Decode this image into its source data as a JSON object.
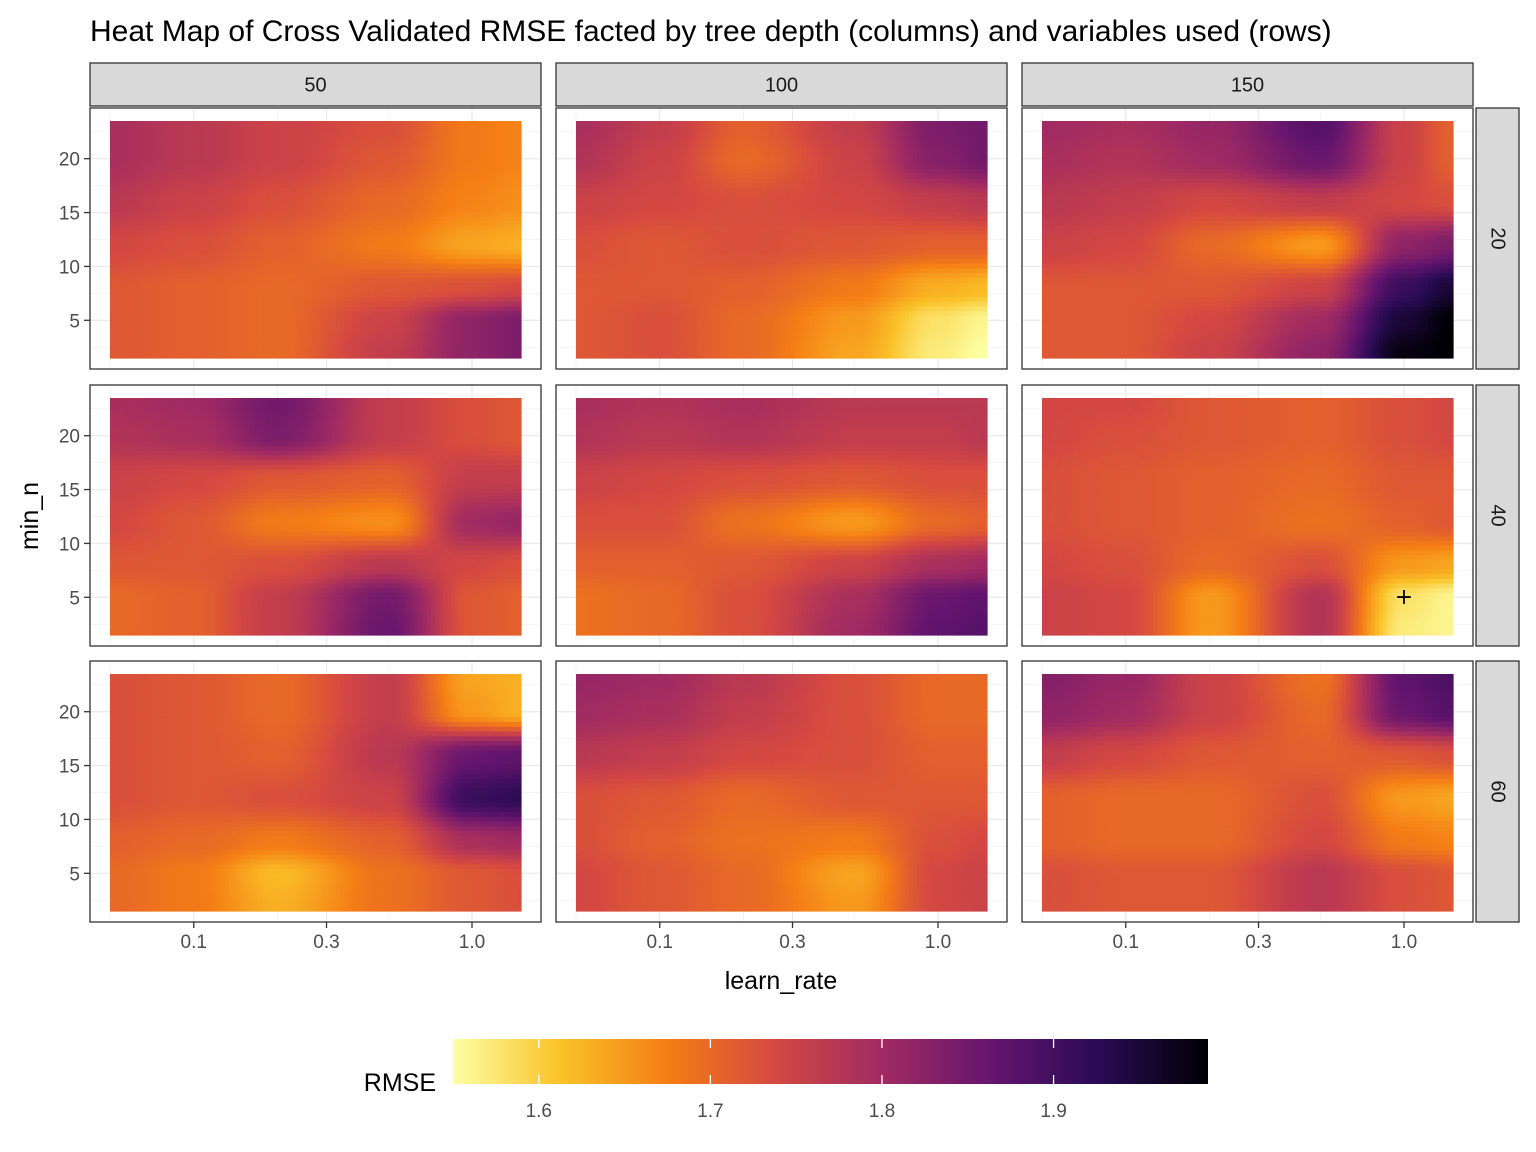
{
  "chart_data": {
    "type": "heatmap",
    "title": "Heat Map of Cross Validated RMSE facted by tree depth (columns) and variables used (rows)",
    "xlabel": "learn_rate",
    "ylabel": "min_n",
    "x_scale": "log10",
    "x_ticks": [
      0.1,
      0.3,
      1.0
    ],
    "x_tick_labels": [
      "0.1",
      "0.3",
      "1.0"
    ],
    "y_ticks": [
      5,
      10,
      15,
      20
    ],
    "y_tick_labels": [
      "5",
      "10",
      "15",
      "20"
    ],
    "learn_rate_values": [
      0.05,
      0.1,
      0.2,
      0.5,
      1.0,
      1.5
    ],
    "min_n_values": [
      2,
      5,
      8,
      12,
      16,
      20,
      23
    ],
    "column_facets": [
      "50",
      "100",
      "150"
    ],
    "row_facets": [
      "20",
      "40",
      "60"
    ],
    "legend": {
      "title": "RMSE",
      "placement": "bottom",
      "min": 1.55,
      "max": 1.99,
      "breaks": [
        1.6,
        1.7,
        1.8,
        1.9
      ],
      "break_labels": [
        "1.6",
        "1.7",
        "1.8",
        "1.9"
      ],
      "palette": [
        "#fcffa4",
        "#fac228",
        "#f57d15",
        "#d44842",
        "#9f2a63",
        "#65156e",
        "#280b53",
        "#000004"
      ]
    },
    "grid": true,
    "marker": {
      "label": "+",
      "learn_rate": 1.0,
      "min_n": 5,
      "col": 2,
      "row": 1
    },
    "panels": [
      {
        "col": "50",
        "row": "20",
        "z": [
          [
            1.72,
            1.71,
            1.7,
            1.76,
            1.82,
            1.84
          ],
          [
            1.72,
            1.71,
            1.7,
            1.75,
            1.82,
            1.84
          ],
          [
            1.72,
            1.71,
            1.7,
            1.72,
            1.73,
            1.74
          ],
          [
            1.74,
            1.73,
            1.71,
            1.68,
            1.64,
            1.63
          ],
          [
            1.77,
            1.75,
            1.73,
            1.7,
            1.67,
            1.66
          ],
          [
            1.79,
            1.77,
            1.75,
            1.72,
            1.68,
            1.67
          ],
          [
            1.79,
            1.77,
            1.75,
            1.73,
            1.68,
            1.67
          ]
        ]
      },
      {
        "col": "100",
        "row": "20",
        "z": [
          [
            1.72,
            1.73,
            1.7,
            1.64,
            1.57,
            1.55
          ],
          [
            1.72,
            1.73,
            1.7,
            1.65,
            1.58,
            1.56
          ],
          [
            1.72,
            1.72,
            1.71,
            1.68,
            1.63,
            1.62
          ],
          [
            1.73,
            1.72,
            1.73,
            1.72,
            1.71,
            1.71
          ],
          [
            1.75,
            1.74,
            1.73,
            1.74,
            1.76,
            1.77
          ],
          [
            1.78,
            1.75,
            1.7,
            1.75,
            1.83,
            1.85
          ],
          [
            1.79,
            1.76,
            1.71,
            1.76,
            1.84,
            1.85
          ]
        ]
      },
      {
        "col": "150",
        "row": "20",
        "z": [
          [
            1.72,
            1.72,
            1.75,
            1.82,
            1.98,
            1.99
          ],
          [
            1.72,
            1.72,
            1.74,
            1.8,
            1.95,
            1.99
          ],
          [
            1.72,
            1.72,
            1.72,
            1.75,
            1.91,
            1.95
          ],
          [
            1.75,
            1.74,
            1.7,
            1.65,
            1.82,
            1.84
          ],
          [
            1.77,
            1.76,
            1.74,
            1.76,
            1.74,
            1.73
          ],
          [
            1.79,
            1.78,
            1.8,
            1.86,
            1.75,
            1.71
          ],
          [
            1.8,
            1.79,
            1.81,
            1.88,
            1.75,
            1.71
          ]
        ]
      },
      {
        "col": "50",
        "row": "40",
        "z": [
          [
            1.7,
            1.71,
            1.76,
            1.86,
            1.72,
            1.71
          ],
          [
            1.7,
            1.71,
            1.76,
            1.85,
            1.72,
            1.71
          ],
          [
            1.72,
            1.72,
            1.73,
            1.77,
            1.74,
            1.73
          ],
          [
            1.74,
            1.72,
            1.68,
            1.66,
            1.8,
            1.81
          ],
          [
            1.75,
            1.74,
            1.72,
            1.71,
            1.76,
            1.76
          ],
          [
            1.78,
            1.79,
            1.84,
            1.76,
            1.73,
            1.72
          ],
          [
            1.79,
            1.8,
            1.85,
            1.76,
            1.73,
            1.72
          ]
        ]
      },
      {
        "col": "100",
        "row": "40",
        "z": [
          [
            1.69,
            1.7,
            1.73,
            1.8,
            1.87,
            1.88
          ],
          [
            1.69,
            1.7,
            1.73,
            1.79,
            1.86,
            1.87
          ],
          [
            1.71,
            1.71,
            1.72,
            1.75,
            1.79,
            1.8
          ],
          [
            1.73,
            1.73,
            1.69,
            1.65,
            1.7,
            1.71
          ],
          [
            1.75,
            1.74,
            1.73,
            1.72,
            1.73,
            1.73
          ],
          [
            1.78,
            1.77,
            1.78,
            1.76,
            1.76,
            1.77
          ],
          [
            1.79,
            1.78,
            1.79,
            1.77,
            1.77,
            1.77
          ]
        ]
      },
      {
        "col": "150",
        "row": "40",
        "z": [
          [
            1.75,
            1.74,
            1.65,
            1.78,
            1.57,
            1.56
          ],
          [
            1.75,
            1.74,
            1.65,
            1.78,
            1.58,
            1.56
          ],
          [
            1.74,
            1.73,
            1.7,
            1.73,
            1.65,
            1.64
          ],
          [
            1.73,
            1.72,
            1.71,
            1.69,
            1.71,
            1.72
          ],
          [
            1.73,
            1.72,
            1.71,
            1.7,
            1.72,
            1.72
          ],
          [
            1.74,
            1.73,
            1.72,
            1.71,
            1.73,
            1.74
          ],
          [
            1.74,
            1.74,
            1.72,
            1.71,
            1.73,
            1.74
          ]
        ]
      },
      {
        "col": "50",
        "row": "60",
        "z": [
          [
            1.7,
            1.68,
            1.63,
            1.69,
            1.72,
            1.73
          ],
          [
            1.7,
            1.68,
            1.62,
            1.69,
            1.72,
            1.73
          ],
          [
            1.71,
            1.7,
            1.68,
            1.71,
            1.79,
            1.8
          ],
          [
            1.73,
            1.72,
            1.73,
            1.75,
            1.91,
            1.92
          ],
          [
            1.73,
            1.72,
            1.71,
            1.77,
            1.86,
            1.87
          ],
          [
            1.73,
            1.72,
            1.7,
            1.76,
            1.65,
            1.63
          ],
          [
            1.73,
            1.72,
            1.7,
            1.76,
            1.64,
            1.63
          ]
        ]
      },
      {
        "col": "100",
        "row": "60",
        "z": [
          [
            1.74,
            1.72,
            1.7,
            1.65,
            1.74,
            1.75
          ],
          [
            1.74,
            1.72,
            1.7,
            1.64,
            1.74,
            1.75
          ],
          [
            1.73,
            1.71,
            1.69,
            1.68,
            1.73,
            1.74
          ],
          [
            1.73,
            1.72,
            1.7,
            1.72,
            1.72,
            1.72
          ],
          [
            1.77,
            1.76,
            1.74,
            1.73,
            1.71,
            1.71
          ],
          [
            1.8,
            1.79,
            1.76,
            1.73,
            1.7,
            1.7
          ],
          [
            1.81,
            1.8,
            1.77,
            1.73,
            1.7,
            1.7
          ]
        ]
      },
      {
        "col": "150",
        "row": "60",
        "z": [
          [
            1.73,
            1.72,
            1.72,
            1.77,
            1.73,
            1.72
          ],
          [
            1.73,
            1.72,
            1.72,
            1.77,
            1.73,
            1.72
          ],
          [
            1.71,
            1.7,
            1.7,
            1.74,
            1.68,
            1.67
          ],
          [
            1.71,
            1.7,
            1.7,
            1.73,
            1.65,
            1.64
          ],
          [
            1.76,
            1.74,
            1.72,
            1.71,
            1.72,
            1.73
          ],
          [
            1.82,
            1.8,
            1.75,
            1.7,
            1.86,
            1.88
          ],
          [
            1.83,
            1.81,
            1.75,
            1.69,
            1.87,
            1.89
          ]
        ]
      }
    ]
  }
}
